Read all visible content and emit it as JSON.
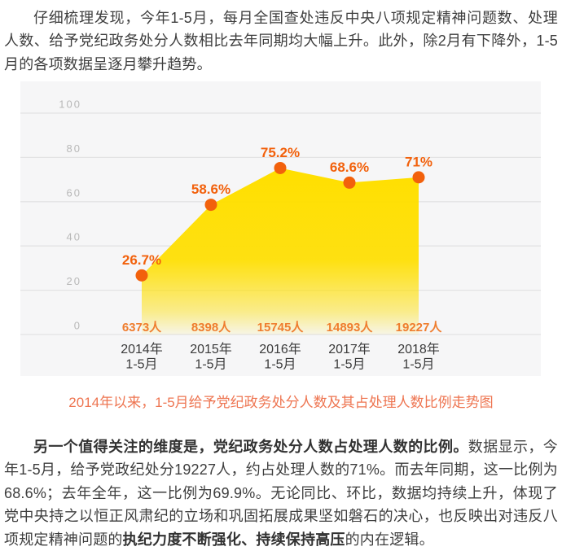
{
  "paragraph1": {
    "text": "仔细梳理发现，今年1-5月，每月全国查处违反中央八项规定精神问题数、处理人数、给予党纪政务处分人数相比去年同期均大幅上升。此外，除2月有下降外，1-5月的各项数据呈逐月攀升趋势。"
  },
  "chart": {
    "caption": "2014年以来，1-5月给予党纪政务处分人数及其占处理人数比例走势图"
  },
  "chart_data": {
    "type": "area",
    "title": "2014年以来，1-5月给予党纪政务处分人数及其占处理人数比例走势图",
    "categories": [
      "2014年\n1-5月",
      "2015年\n1-5月",
      "2016年\n1-5月",
      "2017年\n1-5月",
      "2018年\n1-5月"
    ],
    "series": [
      {
        "name": "占处理人数比例",
        "values": [
          26.7,
          58.6,
          75.2,
          68.6,
          71
        ],
        "labels": [
          "26.7%",
          "58.6%",
          "75.2%",
          "68.6%",
          "71%"
        ]
      },
      {
        "name": "给予党纪政务处分人数",
        "labels": [
          "6373人",
          "8398人",
          "15745人",
          "14893人",
          "19227人"
        ]
      }
    ],
    "xlabel": "",
    "ylabel": "",
    "ylim": [
      0,
      100
    ],
    "yticks": [
      100,
      80,
      60,
      40,
      20,
      0
    ],
    "grid": "horizontal",
    "legend": "none"
  },
  "colors": {
    "area_yellow": "#ffdf00",
    "dot_orange": "#f2610c",
    "percent_label_orange": "#f2610c",
    "value_label_orange": "#ef7d2e",
    "caption_orange": "#ee7551",
    "panel_bg": "#f6f6f7",
    "gridline": "#e3e3e4",
    "ytick_gray": "#b8b8b8",
    "xtick_dark": "#3b3b3b",
    "body_text": "#3e3e3e"
  },
  "paragraph2": {
    "lead_bold": "另一个值得关注的维度是，党纪政务处分人数占处理人数的比例。",
    "body1": "数据显示，今年1-5月，给予党政纪处分19227人，约占处理人数的71%。而去年同期，这一比例为68.6%；去年全年，这一比例为69.9%。无论同比、环比，数据均持续上升，体现了党中央持之以恒正风肃纪的立场和巩固拓展成果坚如磐石的决心，也反映出对违反八项规定精神问题的",
    "bold2": "执纪力度不断强化、持续保持高压",
    "body2": "的内在逻辑。"
  }
}
